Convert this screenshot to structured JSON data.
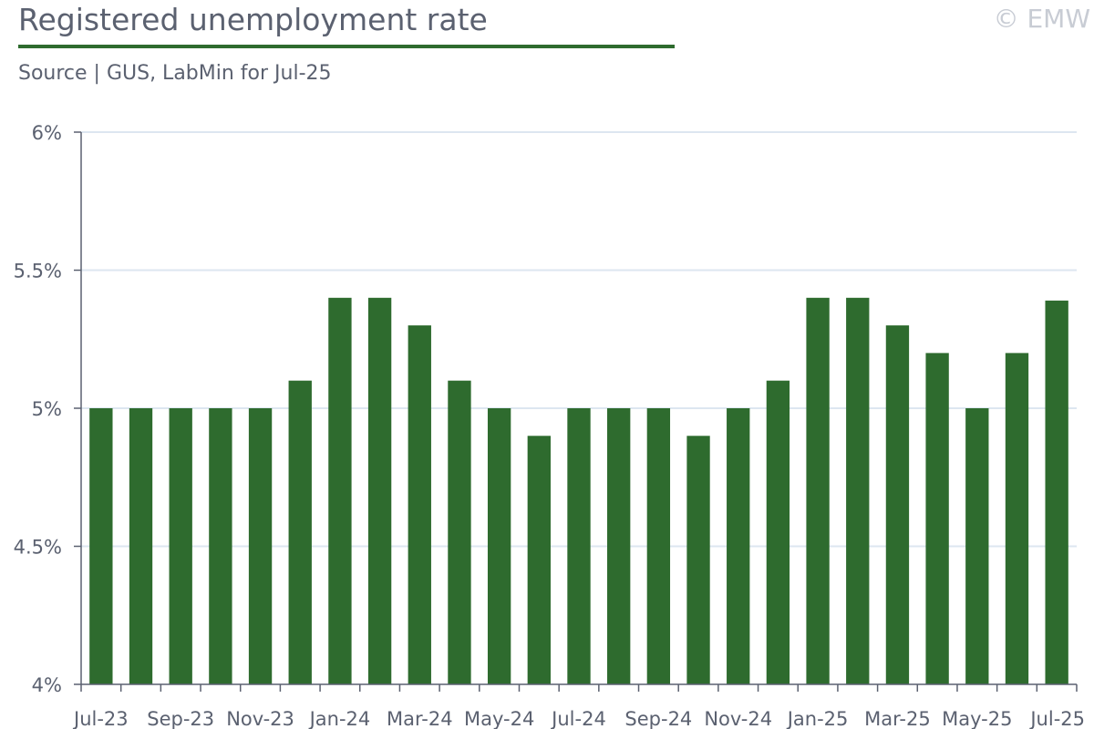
{
  "header": {
    "title": "Registered unemployment rate",
    "subtitle": "Source | GUS, LabMin for Jul-25",
    "copyright": "© EMW"
  },
  "colors": {
    "bar": "#2e6b2e",
    "accent_rule": "#2e6b2e",
    "grid": "#dde6f0",
    "axis": "#5b6170"
  },
  "chart_data": {
    "type": "bar",
    "categories": [
      "Jul-23",
      "Aug-23",
      "Sep-23",
      "Oct-23",
      "Nov-23",
      "Dec-23",
      "Jan-24",
      "Feb-24",
      "Mar-24",
      "Apr-24",
      "May-24",
      "Jun-24",
      "Jul-24",
      "Aug-24",
      "Sep-24",
      "Oct-24",
      "Nov-24",
      "Dec-24",
      "Jan-25",
      "Feb-25",
      "Mar-25",
      "Apr-25",
      "May-25",
      "Jun-25",
      "Jul-25"
    ],
    "values": [
      5.0,
      5.0,
      5.0,
      5.0,
      5.0,
      5.1,
      5.4,
      5.4,
      5.3,
      5.1,
      5.0,
      4.9,
      5.0,
      5.0,
      5.0,
      4.9,
      5.0,
      5.1,
      5.4,
      5.4,
      5.3,
      5.2,
      5.0,
      5.2,
      5.39
    ],
    "x_tick_labels": [
      "Jul-23",
      "Sep-23",
      "Nov-23",
      "Jan-24",
      "Mar-24",
      "May-24",
      "Jul-24",
      "Sep-24",
      "Nov-24",
      "Jan-25",
      "Mar-25",
      "May-25",
      "Jul-25"
    ],
    "y_ticks": [
      4,
      4.5,
      5,
      5.5,
      6
    ],
    "y_tick_labels": [
      "4%",
      "4.5%",
      "5%",
      "5.5%",
      "6%"
    ],
    "ylim": [
      4,
      6
    ],
    "title": "Registered unemployment rate",
    "xlabel": "",
    "ylabel": "",
    "grid": true,
    "legend": "none"
  }
}
